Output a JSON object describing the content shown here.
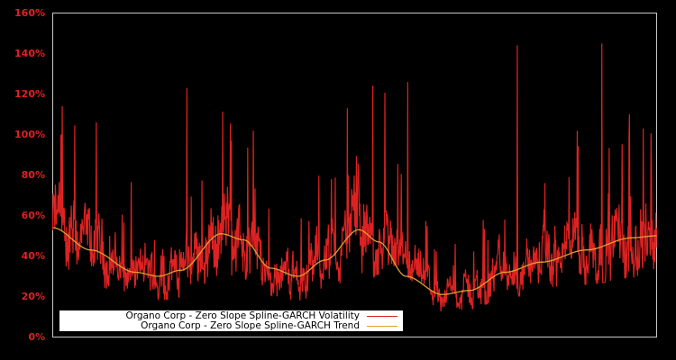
{
  "chart_data": {
    "type": "line",
    "title": "",
    "xlabel": "",
    "ylabel": "",
    "ylim": [
      0,
      160
    ],
    "yticks": [
      "0%",
      "20%",
      "40%",
      "60%",
      "80%",
      "100%",
      "120%",
      "140%",
      "160%"
    ],
    "grid": false,
    "legend_position": "lower-left",
    "series": [
      {
        "name": "Organo Corp - Zero Slope Spline-GARCH Volatility",
        "color": "#dd2222",
        "description": "High-frequency volatility oscillating around trend with spikes",
        "notable_peaks": [
          {
            "x_frac": 0.016,
            "value": 114
          },
          {
            "x_frac": 0.072,
            "value": 106
          },
          {
            "x_frac": 0.222,
            "value": 123
          },
          {
            "x_frac": 0.488,
            "value": 113
          },
          {
            "x_frac": 0.588,
            "value": 126
          },
          {
            "x_frac": 0.769,
            "value": 144
          },
          {
            "x_frac": 0.909,
            "value": 145
          },
          {
            "x_frac": 0.955,
            "value": 110
          },
          {
            "x_frac": 0.978,
            "value": 103
          }
        ]
      },
      {
        "name": "Organo Corp - Zero Slope Spline-GARCH Trend",
        "color": "#e0a030",
        "x_frac": [
          0.0,
          0.063,
          0.137,
          0.175,
          0.212,
          0.279,
          0.316,
          0.361,
          0.406,
          0.451,
          0.507,
          0.54,
          0.585,
          0.645,
          0.69,
          0.749,
          0.809,
          0.884,
          0.958,
          1.0
        ],
        "values": [
          54,
          43,
          32,
          30,
          33,
          51,
          48,
          34,
          30,
          38,
          53,
          47,
          30,
          21,
          23,
          32,
          37,
          43,
          49,
          50
        ]
      }
    ]
  },
  "legend": {
    "items": [
      {
        "label": "Organo Corp - Zero Slope Spline-GARCH Volatility",
        "color": "#dd2222"
      },
      {
        "label": "Organo Corp - Zero Slope Spline-GARCH Trend",
        "color": "#e0a030"
      }
    ]
  }
}
